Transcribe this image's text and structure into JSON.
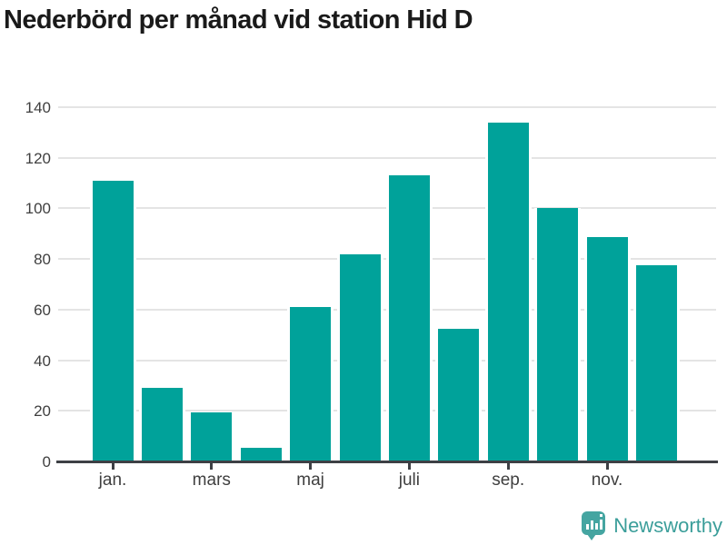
{
  "chart_data": {
    "type": "bar",
    "title": "Nederbörd per månad vid station Hid D",
    "values": [
      111,
      29,
      19.5,
      5.5,
      61,
      82,
      113,
      52.5,
      134,
      100,
      88.5,
      77.5
    ],
    "months_count": 12,
    "x_tick_labels": [
      "jan.",
      "mars",
      "maj",
      "juli",
      "sep.",
      "nov."
    ],
    "x_tick_bar_indices": [
      0,
      2,
      4,
      6,
      8,
      10
    ],
    "y_ticks": [
      0,
      20,
      40,
      60,
      80,
      100,
      120,
      140
    ],
    "ylim": [
      0,
      140
    ],
    "grid": true,
    "legend": "none",
    "bar_color": "#00a29a"
  },
  "colors": {
    "bar": "#00a29a",
    "grid": "#e4e4e4",
    "axis": "#3d4045",
    "tick_text": "#3f3f3f",
    "title_text": "#1a1a1a",
    "brand": "#3b9e9a"
  },
  "footer": {
    "brand": "Newsworthy"
  },
  "icons": {
    "brand_icon": "newsworthy-chart-bubble-icon"
  }
}
